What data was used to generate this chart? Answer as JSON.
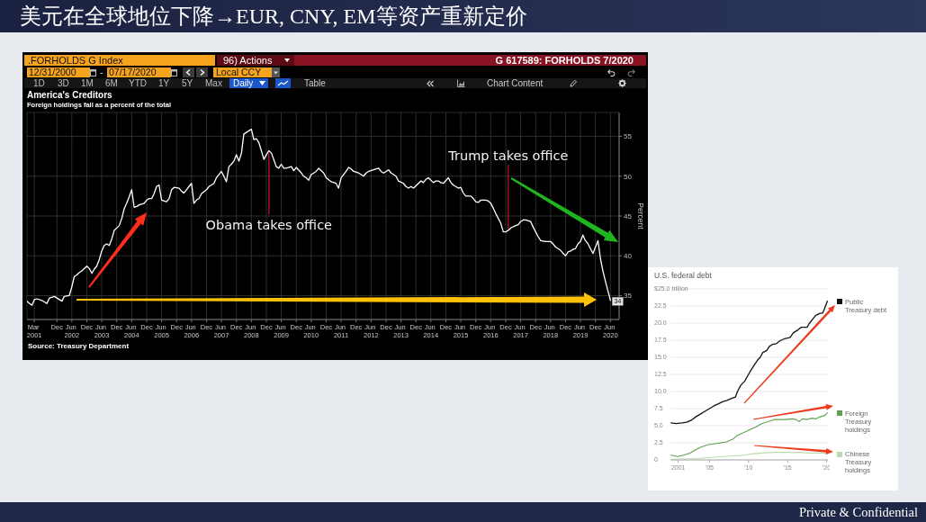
{
  "chart_data": [
    {
      "type": "line",
      "title": "America's Creditors",
      "subtitle": "Foreign holdings fall as a percent of the total",
      "ylabel": "Percent",
      "x": [
        "2000-12",
        "2001-01",
        "2001-02",
        "2001-03",
        "2001-04",
        "2001-06",
        "2001-08",
        "2001-09",
        "2001-11",
        "2001-12",
        "2002-02",
        "2002-03",
        "2002-05",
        "2002-06",
        "2002-07",
        "2002-08",
        "2002-09",
        "2002-10",
        "2002-12",
        "2003-01",
        "2003-02",
        "2003-03",
        "2003-04",
        "2003-05",
        "2003-06",
        "2003-07",
        "2003-08",
        "2003-09",
        "2003-10",
        "2003-11",
        "2004-01",
        "2004-02",
        "2004-03",
        "2004-04",
        "2004-05",
        "2004-06",
        "2004-07",
        "2004-08",
        "2004-09",
        "2004-11",
        "2004-12",
        "2005-01",
        "2005-02",
        "2005-03",
        "2005-04",
        "2005-05",
        "2005-06",
        "2005-08",
        "2005-09",
        "2005-10",
        "2005-11",
        "2006-01",
        "2006-02",
        "2006-03",
        "2006-04",
        "2006-05",
        "2006-06",
        "2006-07",
        "2006-08",
        "2006-09",
        "2006-10",
        "2006-12",
        "2007-01",
        "2007-02",
        "2007-03",
        "2007-04",
        "2007-06",
        "2007-07",
        "2007-08",
        "2007-09",
        "2007-10",
        "2007-11",
        "2007-12",
        "2008-01",
        "2008-02",
        "2008-03",
        "2008-04",
        "2008-05",
        "2008-06",
        "2008-07",
        "2008-08",
        "2008-09",
        "2008-10",
        "2008-11",
        "2008-12",
        "2009-01",
        "2009-02",
        "2009-03",
        "2009-04",
        "2009-05",
        "2009-06",
        "2009-07",
        "2009-08",
        "2009-10",
        "2009-11",
        "2009-12",
        "2010-02",
        "2010-03",
        "2010-04",
        "2010-05",
        "2010-06",
        "2010-08",
        "2010-09",
        "2010-11",
        "2010-12",
        "2011-02",
        "2011-04",
        "2011-05",
        "2011-06",
        "2011-08",
        "2011-09",
        "2011-10",
        "2011-11",
        "2012-01",
        "2012-02",
        "2012-03",
        "2012-04",
        "2012-05",
        "2012-07",
        "2012-09",
        "2012-10",
        "2012-11",
        "2013-01",
        "2013-02",
        "2013-04",
        "2013-05",
        "2013-07",
        "2013-08",
        "2013-09",
        "2013-10",
        "2013-11",
        "2014-01",
        "2014-02",
        "2014-03",
        "2014-04",
        "2014-05",
        "2014-07",
        "2014-08",
        "2014-09",
        "2014-10",
        "2014-11",
        "2015-01",
        "2015-02",
        "2015-03",
        "2015-04",
        "2015-05",
        "2015-06",
        "2015-07",
        "2015-08",
        "2015-10",
        "2015-11",
        "2015-12",
        "2016-01",
        "2016-02",
        "2016-04",
        "2016-05",
        "2016-06",
        "2016-07",
        "2016-08",
        "2016-10",
        "2016-11",
        "2016-12",
        "2017-01",
        "2017-02",
        "2017-04",
        "2017-05",
        "2017-06",
        "2017-07",
        "2017-08",
        "2017-10",
        "2017-11",
        "2017-12",
        "2018-01",
        "2018-02",
        "2018-04",
        "2018-05",
        "2018-06",
        "2018-07",
        "2018-08",
        "2018-10",
        "2018-11",
        "2018-12",
        "2019-01",
        "2019-02",
        "2019-03",
        "2019-04",
        "2019-05",
        "2019-06",
        "2019-07",
        "2019-08",
        "2019-09",
        "2019-10",
        "2019-11",
        "2019-12",
        "2020-01",
        "2020-02",
        "2020-03",
        "2020-04",
        "2020-05",
        "2020-06"
      ],
      "series": [
        {
          "color": "#ffffff",
          "values": [
            34.3,
            34.0,
            33.8,
            34.5,
            34.6,
            34.4,
            34.0,
            34.7,
            34.9,
            34.7,
            34.3,
            34.9,
            35.0,
            36.1,
            37.4,
            37.6,
            37.9,
            38.1,
            38.7,
            38.4,
            37.8,
            38.3,
            38.7,
            39.5,
            40.6,
            41.3,
            41.5,
            41.3,
            42.1,
            43.2,
            43.8,
            44.7,
            45.9,
            46.6,
            47.4,
            48.3,
            46.1,
            46.2,
            46.4,
            46.6,
            47.0,
            47.2,
            47.2,
            47.8,
            48.7,
            48.9,
            47.0,
            46.8,
            47.2,
            48.3,
            48.6,
            48.5,
            48.1,
            47.9,
            48.3,
            48.7,
            49.1,
            46.6,
            47.0,
            47.2,
            47.8,
            48.3,
            48.7,
            48.9,
            49.1,
            49.8,
            50.6,
            50.0,
            49.3,
            51.2,
            51.5,
            51.9,
            52.7,
            51.9,
            52.9,
            55.3,
            55.5,
            55.7,
            55.9,
            54.6,
            54.7,
            54.2,
            53.2,
            52.1,
            52.7,
            53.2,
            52.9,
            52.1,
            51.2,
            51.0,
            51.5,
            51.0,
            51.0,
            51.2,
            50.7,
            51.1,
            50.4,
            50.0,
            49.8,
            49.5,
            50.2,
            50.6,
            51.0,
            50.4,
            49.8,
            49.3,
            49.1,
            48.5,
            49.8,
            50.6,
            51.1,
            50.9,
            50.6,
            50.4,
            50.2,
            50.0,
            50.4,
            50.6,
            50.8,
            51.0,
            50.6,
            50.4,
            50.8,
            50.4,
            50.0,
            49.4,
            49.1,
            48.7,
            48.5,
            48.7,
            48.5,
            49.1,
            49.4,
            49.2,
            49.6,
            49.8,
            49.2,
            49.4,
            49.4,
            49.2,
            49.1,
            49.8,
            49.2,
            48.9,
            48.7,
            48.5,
            48.6,
            47.9,
            47.5,
            47.5,
            47.2,
            46.8,
            46.7,
            47.0,
            47.0,
            46.9,
            46.6,
            46.0,
            45.3,
            44.1,
            43.0,
            43.0,
            43.2,
            43.5,
            43.8,
            43.9,
            44.3,
            44.5,
            44.5,
            44.3,
            43.6,
            43.0,
            42.4,
            41.9,
            41.8,
            41.8,
            41.8,
            41.5,
            41.1,
            40.7,
            40.3,
            40.0,
            40.5,
            40.6,
            40.8,
            40.9,
            41.5,
            41.8,
            42.6,
            41.9,
            41.5,
            40.9,
            40.3,
            41.1,
            41.9,
            39.6,
            38.1,
            36.8,
            35.6,
            34.4
          ],
          "value_labels": [
            null,
            null,
            null,
            null,
            null,
            null,
            null,
            null,
            null,
            null,
            null,
            null,
            null,
            null,
            null,
            null,
            null,
            null,
            null,
            null,
            null,
            null,
            null,
            null,
            null,
            null,
            null,
            null,
            null,
            null,
            null,
            null,
            null,
            null,
            null,
            null,
            null,
            null,
            null,
            null,
            null,
            null,
            null,
            null,
            null,
            null,
            null,
            null,
            null,
            null,
            null,
            null,
            null,
            null,
            null,
            null,
            null,
            null,
            null,
            null,
            null,
            null,
            null,
            null,
            null,
            null,
            null,
            null,
            null,
            null,
            null,
            null,
            null,
            null,
            null,
            null,
            null,
            null,
            null,
            null,
            null,
            null,
            null,
            null,
            null,
            null,
            null,
            null,
            null,
            null,
            null,
            null,
            null,
            null,
            null,
            null,
            null,
            null,
            null,
            null,
            null,
            null,
            null,
            null,
            null,
            null,
            null,
            null,
            null,
            null,
            null,
            null,
            null,
            null,
            null,
            null,
            null,
            null,
            null,
            null,
            null,
            null,
            null,
            null,
            null,
            null,
            null,
            null,
            null,
            null,
            null,
            null,
            null,
            null,
            null,
            null,
            null,
            null,
            null,
            null,
            null,
            null,
            null,
            null,
            null,
            null,
            null,
            null,
            null,
            null,
            null,
            null,
            null,
            null,
            null,
            null,
            null,
            null,
            null,
            null,
            null,
            null,
            null,
            null,
            null,
            null,
            null,
            null,
            null,
            null,
            null,
            null,
            null,
            null,
            null,
            null,
            null,
            null,
            null,
            null,
            null,
            null,
            null,
            null,
            null,
            null,
            null,
            null,
            null,
            null,
            null,
            null,
            null,
            null,
            null,
            null,
            null,
            null,
            null,
            "34"
          ]
        }
      ],
      "xlim": [
        "2000-12",
        "2020-09-15"
      ],
      "xticks": [
        {
          "value": "2001-03",
          "label": "Mar 2001"
        },
        {
          "value": "2001-12",
          "label": "Dec"
        },
        {
          "value": "2002-06",
          "label": "Jun 2002"
        },
        {
          "value": "2002-12",
          "label": "Dec"
        },
        {
          "value": "2003-06",
          "label": "Jun 2003"
        },
        {
          "value": "2003-12",
          "label": "Dec"
        },
        {
          "value": "2004-06",
          "label": "Jun 2004"
        },
        {
          "value": "2004-12",
          "label": "Dec"
        },
        {
          "value": "2005-06",
          "label": "Jun 2005"
        },
        {
          "value": "2005-12",
          "label": "Dec"
        },
        {
          "value": "2006-06",
          "label": "Jun 2006"
        },
        {
          "value": "2006-12",
          "label": "Dec"
        },
        {
          "value": "2007-06",
          "label": "Jun 2007"
        },
        {
          "value": "2007-12",
          "label": "Dec"
        },
        {
          "value": "2008-06",
          "label": "Jun 2008"
        },
        {
          "value": "2008-12",
          "label": "Dec"
        },
        {
          "value": "2009-06",
          "label": "Jun 2009"
        },
        {
          "value": "2009-12",
          "label": "Dec"
        },
        {
          "value": "2010-06",
          "label": "Jun 2010"
        },
        {
          "value": "2010-12",
          "label": "Dec"
        },
        {
          "value": "2011-06",
          "label": "Jun 2011"
        },
        {
          "value": "2011-12",
          "label": "Dec"
        },
        {
          "value": "2012-06",
          "label": "Jun 2012"
        },
        {
          "value": "2012-12",
          "label": "Dec"
        },
        {
          "value": "2013-06",
          "label": "Jun 2013"
        },
        {
          "value": "2013-12",
          "label": "Dec"
        },
        {
          "value": "2014-06",
          "label": "Jun 2014"
        },
        {
          "value": "2014-12",
          "label": "Dec"
        },
        {
          "value": "2015-06",
          "label": "Jun 2015"
        },
        {
          "value": "2015-12",
          "label": "Dec"
        },
        {
          "value": "2016-06",
          "label": "Jun 2016"
        },
        {
          "value": "2016-12",
          "label": "Dec"
        },
        {
          "value": "2017-06",
          "label": "Jun 2017"
        },
        {
          "value": "2017-12",
          "label": "Dec"
        },
        {
          "value": "2018-06",
          "label": "Jun 2018"
        },
        {
          "value": "2018-12",
          "label": "Dec"
        },
        {
          "value": "2019-06",
          "label": "Jun 2019"
        },
        {
          "value": "2019-12",
          "label": "Dec"
        },
        {
          "value": "2020-06",
          "label": "Jun 2020"
        }
      ],
      "ylim": [
        32,
        58
      ],
      "yticks": [
        35,
        40,
        45,
        50,
        55
      ],
      "grid": true,
      "annotations": [
        "美元在全球地位下降→EUR, CNY, EM等资产重新定价",
        ".FORHOLDS G Index",
        "96) Actions",
        "G 617589: FORHOLDS 7/2020",
        "12/31/2000",
        "-",
        "07/17/2020",
        "Local CCY",
        "1D",
        "3D",
        "1M",
        "6M",
        "YTD",
        "1Y",
        "5Y",
        "Max",
        "Daily",
        "Table",
        "Chart Content",
        "Source: Treasury Department",
        "Private & Confidential",
        {
          "text": "Obama takes office",
          "x": "2009-01",
          "y": 53.2
        },
        {
          "text": "Trump takes office",
          "x": "2017-01",
          "y": 43.2
        }
      ]
    },
    {
      "type": "line",
      "title": "U.S. federal debt",
      "series": [
        {
          "name": "Public Treasury debt",
          "color": "#111111",
          "x": [
            "2000-02",
            "2000-10",
            "2001-07",
            "2002-02",
            "2002-09",
            "2003-04",
            "2003-11",
            "2004-06",
            "2005-01",
            "2005-08",
            "2006-03",
            "2006-09",
            "2007-04",
            "2007-11",
            "2008-05",
            "2008-08",
            "2009-01",
            "2009-07",
            "2010-01",
            "2010-06",
            "2010-10",
            "2011-03",
            "2011-07",
            "2011-11",
            "2012-05",
            "2012-09",
            "2013-02",
            "2013-08",
            "2014-01",
            "2014-08",
            "2015-01",
            "2015-05",
            "2015-10",
            "2016-05",
            "2016-10",
            "2017-02",
            "2017-07",
            "2017-10",
            "2018-03",
            "2018-08",
            "2019-02",
            "2019-07",
            "2019-09",
            "2020-02"
          ],
          "values": [
            5.4,
            5.3,
            5.4,
            5.5,
            5.8,
            6.3,
            6.7,
            7.1,
            7.5,
            7.9,
            8.2,
            8.5,
            8.7,
            9.0,
            9.2,
            10.0,
            10.9,
            11.5,
            12.5,
            13.3,
            13.9,
            14.6,
            15.0,
            15.7,
            16.0,
            16.6,
            16.9,
            17.0,
            17.4,
            17.7,
            17.8,
            17.9,
            18.6,
            19.0,
            19.4,
            19.4,
            19.4,
            19.9,
            20.5,
            21.1,
            21.4,
            21.5,
            21.9,
            23.2
          ]
        },
        {
          "name": "Foreign Treasury holdings",
          "color": "#5e9f51",
          "x": [
            "2000-02",
            "2000-12",
            "2001-09",
            "2002-07",
            "2003-04",
            "2004-01",
            "2004-10",
            "2005-12",
            "2007-02",
            "2008-02",
            "2008-08",
            "2009-06",
            "2010-03",
            "2010-12",
            "2011-09",
            "2012-07",
            "2013-04",
            "2014-01",
            "2014-10",
            "2015-08",
            "2016-02",
            "2016-07",
            "2016-12",
            "2017-07",
            "2018-02",
            "2018-08",
            "2019-03",
            "2019-10",
            "2020-02"
          ],
          "values": [
            0.7,
            0.5,
            0.7,
            1.0,
            1.5,
            1.9,
            2.2,
            2.4,
            2.6,
            3.1,
            3.6,
            4.0,
            4.4,
            4.8,
            5.3,
            5.6,
            5.9,
            5.9,
            5.9,
            6.0,
            5.9,
            5.6,
            6.0,
            5.9,
            6.1,
            6.0,
            6.3,
            6.5,
            6.9
          ]
        },
        {
          "name": "Chinese Treasury holdings",
          "color": "#b9dcae",
          "x": [
            "2000-02",
            "2003-04",
            "2005-07",
            "2008-02",
            "2009-06",
            "2010-08",
            "2011-09",
            "2013-04",
            "2014-10",
            "2016-05",
            "2017-11",
            "2019-06",
            "2020-02"
          ],
          "values": [
            0.1,
            0.2,
            0.4,
            0.6,
            0.7,
            0.9,
            1.0,
            1.1,
            1.1,
            1.1,
            1.0,
            1.0,
            0.9
          ]
        }
      ],
      "xlim": [
        "2000-01",
        "2020-03"
      ],
      "xticks": [
        {
          "value": "2001",
          "label": "2001"
        },
        {
          "value": "2005",
          "label": "'05"
        },
        {
          "value": "2010",
          "label": "'10"
        },
        {
          "value": "2015",
          "label": "'15"
        },
        {
          "value": "2020",
          "label": "'20"
        }
      ],
      "ylim": [
        0,
        25
      ],
      "yticks": [
        {
          "value": 25,
          "label": "$25.0 trillion"
        },
        22.5,
        {
          "value": 20,
          "label": "20.0"
        },
        17.5,
        {
          "value": 15,
          "label": "15.0"
        },
        12.5,
        {
          "value": 10,
          "label": "10.0"
        },
        7.5,
        {
          "value": 5,
          "label": "5.0"
        },
        2.5,
        0
      ],
      "grid": "y",
      "legend": "right"
    }
  ]
}
